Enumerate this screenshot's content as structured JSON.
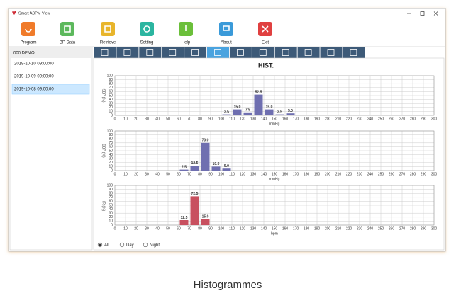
{
  "window": {
    "title": "Smart ABPM View"
  },
  "toolbar": [
    "Program",
    "BP Data",
    "Retrieve",
    "Setting",
    "Help",
    "About",
    "Exit"
  ],
  "patient": {
    "name": "000 DEMO",
    "sessions": [
      "2019-10-10 09:00:00",
      "2019-10-09 09:00:00",
      "2019-10-08 09:00:00"
    ],
    "selected_session": 2
  },
  "view": {
    "title": "HIST.",
    "charts": [
      {
        "type": "histogram",
        "y_label": "SBP (%)",
        "x_label": "mmHg",
        "color": "#6f6fb0",
        "bins": [
          100,
          110,
          120,
          130,
          140,
          150,
          160,
          170
        ],
        "values": [
          2.5,
          15,
          7.5,
          52.5,
          15,
          2.5,
          5
        ],
        "value_labels": [
          "2.5",
          "15.0",
          "7.5",
          "52.5",
          "15.0",
          "2.5",
          "5.0"
        ],
        "xlim": [
          0,
          300
        ],
        "xticks": [
          0,
          10,
          20,
          30,
          40,
          50,
          60,
          70,
          80,
          90,
          100,
          110,
          120,
          130,
          140,
          150,
          160,
          170,
          180,
          190,
          200,
          210,
          220,
          230,
          240,
          250,
          260,
          270,
          280,
          290,
          300
        ],
        "ylim": [
          0,
          100
        ],
        "yticks": [
          0,
          10,
          20,
          30,
          40,
          50,
          60,
          70,
          80,
          90,
          100
        ],
        "grid": true
      },
      {
        "type": "histogram",
        "y_label": "DBP (%)",
        "x_label": "mmHg",
        "color": "#6f6fb0",
        "bins": [
          60,
          70,
          80,
          90,
          100,
          110
        ],
        "values": [
          2.5,
          12.5,
          70,
          10,
          5
        ],
        "value_labels": [
          "2.5",
          "12.5",
          "70.0",
          "10.0",
          "5.0"
        ],
        "xlim": [
          0,
          300
        ],
        "xticks": [
          0,
          10,
          20,
          30,
          40,
          50,
          60,
          70,
          80,
          90,
          100,
          110,
          120,
          130,
          140,
          150,
          160,
          170,
          180,
          190,
          200,
          210,
          220,
          230,
          240,
          250,
          260,
          270,
          280,
          290,
          300
        ],
        "ylim": [
          0,
          100
        ],
        "yticks": [
          0,
          10,
          20,
          30,
          40,
          50,
          60,
          70,
          80,
          90,
          100
        ],
        "grid": true
      },
      {
        "type": "histogram",
        "y_label": "HR (%)",
        "x_label": "bpm",
        "color": "#c8505f",
        "bins": [
          60,
          70,
          80,
          90
        ],
        "values": [
          12.5,
          72.5,
          15
        ],
        "value_labels": [
          "12.5",
          "72.5",
          "15.0"
        ],
        "xlim": [
          0,
          300
        ],
        "xticks": [
          0,
          10,
          20,
          30,
          40,
          50,
          60,
          70,
          80,
          90,
          100,
          110,
          120,
          130,
          140,
          150,
          160,
          170,
          180,
          190,
          200,
          210,
          220,
          230,
          240,
          250,
          260,
          270,
          280,
          290,
          300
        ],
        "ylim": [
          0,
          100
        ],
        "yticks": [
          0,
          10,
          20,
          30,
          40,
          50,
          60,
          70,
          80,
          90,
          100
        ],
        "grid": true
      }
    ],
    "filters": [
      "All",
      "Day",
      "Night"
    ],
    "selected_filter": 0
  },
  "caption": "Histogrammes"
}
